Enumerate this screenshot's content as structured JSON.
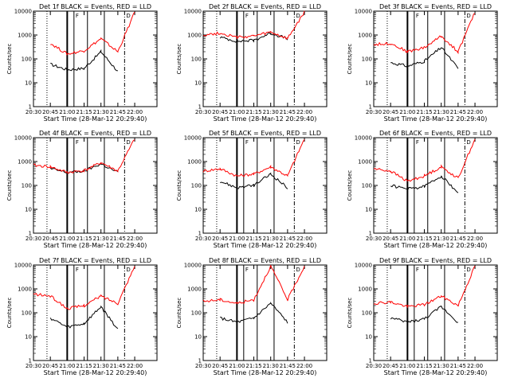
{
  "figure": {
    "xlabel": "Start Time (28-Mar-12 20:29:40)",
    "ylabel": "Counts/sec",
    "xticks": [
      "20:30",
      "20:45",
      "21:00",
      "21:15",
      "21:30",
      "21:45",
      "22:00"
    ],
    "yticks": [
      "1",
      "10",
      "100",
      "1000",
      "10000"
    ],
    "flag_letters": [
      "F",
      "D"
    ]
  },
  "chart_data": [
    {
      "type": "line",
      "title": "Det 1f BLACK = Events, RED = LLD",
      "xlabel": "Start Time (28-Mar-12 20:29:40)",
      "ylabel": "Counts/sec",
      "ylim": [
        1,
        10000
      ],
      "yscale": "log",
      "x": [
        "20:30",
        "20:45",
        "21:00",
        "21:15",
        "21:30",
        "21:45",
        "22:00"
      ],
      "series": [
        {
          "name": "Events",
          "color": "#000000",
          "values": [
            null,
            60,
            35,
            40,
            200,
            30,
            null
          ]
        },
        {
          "name": "LLD",
          "color": "#ff0000",
          "values": [
            null,
            450,
            160,
            220,
            700,
            200,
            9000
          ]
        }
      ],
      "markers": {
        "dotted": [
          20.7
        ],
        "solid": [
          21.0,
          21.1,
          21.3,
          21.55
        ],
        "dashdot": [
          21.85
        ]
      }
    },
    {
      "type": "line",
      "title": "Det 2f BLACK = Events, RED = LLD",
      "xlabel": "Start Time (28-Mar-12 20:29:40)",
      "ylabel": "Counts/sec",
      "ylim": [
        1,
        10000
      ],
      "yscale": "log",
      "x": [
        "20:30",
        "20:45",
        "21:00",
        "21:15",
        "21:30",
        "21:45",
        "22:00"
      ],
      "series": [
        {
          "name": "Events",
          "color": "#000000",
          "values": [
            null,
            800,
            550,
            600,
            1200,
            700,
            null
          ]
        },
        {
          "name": "LLD",
          "color": "#ff0000",
          "values": [
            1000,
            1200,
            800,
            900,
            1300,
            700,
            9000
          ]
        }
      ],
      "markers": {
        "dotted": [
          20.7
        ],
        "solid": [
          21.0,
          21.1,
          21.3,
          21.55
        ],
        "dashdot": [
          21.85
        ]
      }
    },
    {
      "type": "line",
      "title": "Det 3f BLACK = Events, RED = LLD",
      "xlabel": "Start Time (28-Mar-12 20:29:40)",
      "ylabel": "Counts/sec",
      "ylim": [
        1,
        10000
      ],
      "yscale": "log",
      "x": [
        "20:30",
        "20:45",
        "21:00",
        "21:15",
        "21:30",
        "21:45",
        "22:00"
      ],
      "series": [
        {
          "name": "Events",
          "color": "#000000",
          "values": [
            null,
            70,
            50,
            80,
            300,
            40,
            null
          ]
        },
        {
          "name": "LLD",
          "color": "#ff0000",
          "values": [
            400,
            450,
            200,
            300,
            900,
            200,
            9000
          ]
        }
      ],
      "markers": {
        "dotted": [
          20.7
        ],
        "solid": [
          21.0,
          21.1,
          21.3,
          21.55
        ],
        "dashdot": [
          21.85
        ]
      }
    },
    {
      "type": "line",
      "title": "Det 4f BLACK = Events, RED = LLD",
      "xlabel": "Start Time (28-Mar-12 20:29:40)",
      "ylabel": "Counts/sec",
      "ylim": [
        1,
        10000
      ],
      "yscale": "log",
      "x": [
        "20:30",
        "20:45",
        "21:00",
        "21:15",
        "21:30",
        "21:45",
        "22:00"
      ],
      "series": [
        {
          "name": "Events",
          "color": "#000000",
          "values": [
            null,
            500,
            350,
            400,
            800,
            350,
            null
          ]
        },
        {
          "name": "LLD",
          "color": "#ff0000",
          "values": [
            700,
            600,
            350,
            420,
            900,
            400,
            9000
          ]
        }
      ],
      "markers": {
        "dotted": [
          20.7
        ],
        "solid": [
          21.0,
          21.1,
          21.3,
          21.55
        ],
        "dashdot": [
          21.85
        ]
      }
    },
    {
      "type": "line",
      "title": "Det 5f BLACK = Events, RED = LLD",
      "xlabel": "Start Time (28-Mar-12 20:29:40)",
      "ylabel": "Counts/sec",
      "ylim": [
        1,
        10000
      ],
      "yscale": "log",
      "x": [
        "20:30",
        "20:45",
        "21:00",
        "21:15",
        "21:30",
        "21:45",
        "22:00"
      ],
      "series": [
        {
          "name": "Events",
          "color": "#000000",
          "values": [
            null,
            150,
            80,
            100,
            300,
            80,
            null
          ]
        },
        {
          "name": "LLD",
          "color": "#ff0000",
          "values": [
            400,
            500,
            250,
            300,
            600,
            250,
            9000
          ]
        }
      ],
      "markers": {
        "dotted": [
          20.7
        ],
        "solid": [
          21.0,
          21.1,
          21.3,
          21.55
        ],
        "dashdot": [
          21.85
        ]
      }
    },
    {
      "type": "line",
      "title": "Det 6f BLACK = Events, RED = LLD",
      "xlabel": "Start Time (28-Mar-12 20:29:40)",
      "ylabel": "Counts/sec",
      "ylim": [
        1,
        10000
      ],
      "yscale": "log",
      "x": [
        "20:30",
        "20:45",
        "21:00",
        "21:15",
        "21:30",
        "21:45",
        "22:00"
      ],
      "series": [
        {
          "name": "Events",
          "color": "#000000",
          "values": [
            null,
            100,
            70,
            90,
            250,
            50,
            null
          ]
        },
        {
          "name": "LLD",
          "color": "#ff0000",
          "values": [
            500,
            400,
            150,
            250,
            600,
            200,
            9000
          ]
        }
      ],
      "markers": {
        "dotted": [
          20.7
        ],
        "solid": [
          21.0,
          21.1,
          21.3,
          21.55
        ],
        "dashdot": [
          21.85
        ]
      }
    },
    {
      "type": "line",
      "title": "Det 7f BLACK = Events, RED = LLD",
      "xlabel": "Start Time (28-Mar-12 20:29:40)",
      "ylabel": "Counts/sec",
      "ylim": [
        1,
        10000
      ],
      "yscale": "log",
      "x": [
        "20:30",
        "20:45",
        "21:00",
        "21:15",
        "21:30",
        "21:45",
        "22:00"
      ],
      "series": [
        {
          "name": "Events",
          "color": "#000000",
          "values": [
            null,
            60,
            25,
            35,
            180,
            20,
            null
          ]
        },
        {
          "name": "LLD",
          "color": "#ff0000",
          "values": [
            600,
            500,
            150,
            200,
            500,
            250,
            9000
          ]
        }
      ],
      "markers": {
        "dotted": [
          20.7
        ],
        "solid": [
          21.0,
          21.1,
          21.3,
          21.55
        ],
        "dashdot": [
          21.85
        ]
      }
    },
    {
      "type": "line",
      "title": "Det 8f BLACK = Events, RED = LLD",
      "xlabel": "Start Time (28-Mar-12 20:29:40)",
      "ylabel": "Counts/sec",
      "ylim": [
        1,
        10000
      ],
      "yscale": "log",
      "x": [
        "20:30",
        "20:45",
        "21:00",
        "21:15",
        "21:30",
        "21:45",
        "22:00"
      ],
      "series": [
        {
          "name": "Events",
          "color": "#000000",
          "values": [
            null,
            60,
            40,
            60,
            250,
            40,
            null
          ]
        },
        {
          "name": "LLD",
          "color": "#ff0000",
          "values": [
            300,
            350,
            250,
            350,
            9000,
            350,
            9000
          ]
        }
      ],
      "markers": {
        "dotted": [
          20.7
        ],
        "solid": [
          21.0,
          21.1,
          21.3,
          21.55
        ],
        "dashdot": [
          21.85
        ]
      }
    },
    {
      "type": "line",
      "title": "Det 9f BLACK = Events, RED = LLD",
      "xlabel": "Start Time (28-Mar-12 20:29:40)",
      "ylabel": "Counts/sec",
      "ylim": [
        1,
        10000
      ],
      "yscale": "log",
      "x": [
        "20:30",
        "20:45",
        "21:00",
        "21:15",
        "21:30",
        "21:45",
        "22:00"
      ],
      "series": [
        {
          "name": "Events",
          "color": "#000000",
          "values": [
            null,
            60,
            40,
            55,
            180,
            40,
            null
          ]
        },
        {
          "name": "LLD",
          "color": "#ff0000",
          "values": [
            250,
            280,
            180,
            220,
            500,
            200,
            9000
          ]
        }
      ],
      "markers": {
        "dotted": [
          20.7
        ],
        "solid": [
          21.0,
          21.1,
          21.3,
          21.55
        ],
        "dashdot": [
          21.85
        ]
      }
    }
  ]
}
